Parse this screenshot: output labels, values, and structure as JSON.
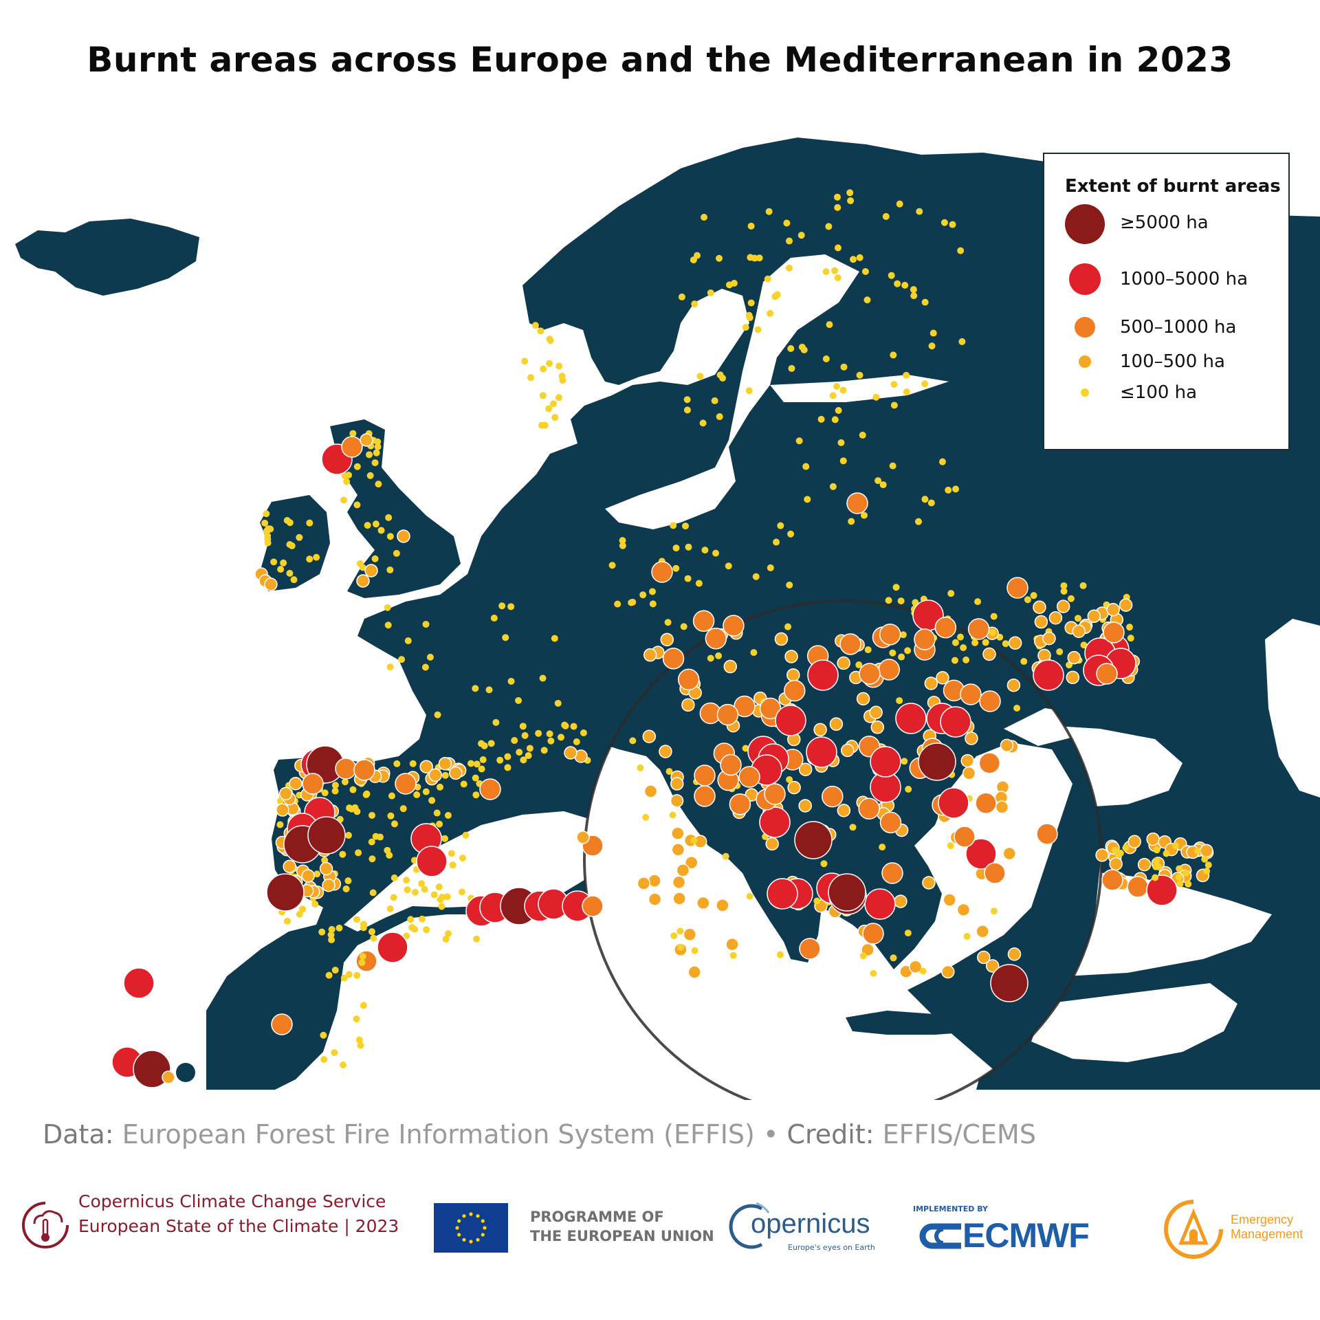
{
  "title": "Burnt areas across Europe and the Mediterranean in 2023",
  "legend": {
    "title": "Extent of burnt areas",
    "items": [
      {
        "label": "≥5000 ha",
        "color": "#8b1a1a",
        "class": "xl"
      },
      {
        "label": "1000–5000 ha",
        "color": "#e0202a",
        "class": "l"
      },
      {
        "label": "500–1000 ha",
        "color": "#f07d22",
        "class": "m"
      },
      {
        "label": "100–500 ha",
        "color": "#f5a623",
        "class": "s"
      },
      {
        "label": "≤100 ha",
        "color": "#f7d22a",
        "class": "xs"
      }
    ]
  },
  "credit": {
    "data_label": "Data:",
    "data_value": "European Forest Fire Information System (EFFIS)",
    "separator": "•",
    "credit_label": "Credit:",
    "credit_value": "EFFIS/CEMS"
  },
  "footer": {
    "c3s_line1": "Copernicus Climate Change Service",
    "c3s_line2": "European State of the Climate | 2023",
    "programme_line1": "PROGRAMME OF",
    "programme_line2": "THE EUROPEAN UNION",
    "copernicus_word": "opernicus",
    "copernicus_tagline": "Europe's eyes on Earth",
    "ecmwf_implemented": "IMPLEMENTED BY",
    "ecmwf_word": "ECMWF",
    "em_line1": "Emergency",
    "em_line2": "Management"
  },
  "colors": {
    "land": "#0d3a4e",
    "sea": "#ffffff",
    "xl": "#8b1a1a",
    "l": "#e0202a",
    "m": "#f07d22",
    "s": "#f5a623",
    "xs": "#f7d22a"
  }
}
